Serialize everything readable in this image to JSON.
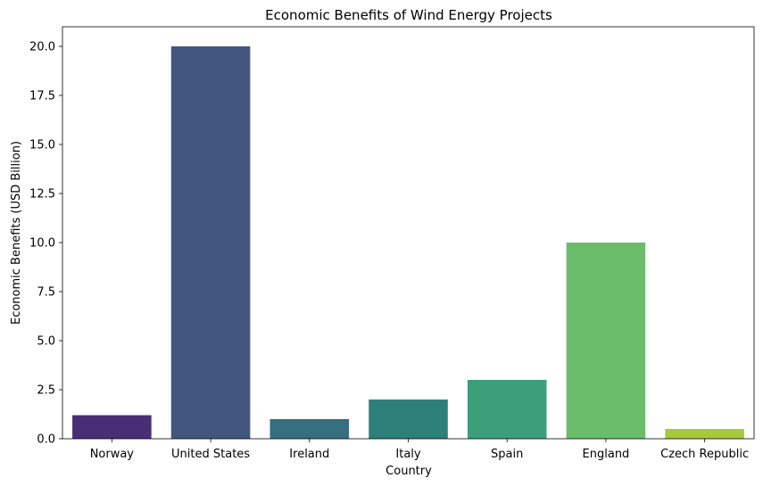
{
  "chart_data": {
    "type": "bar",
    "title": "Economic Benefits of Wind Energy Projects",
    "xlabel": "Country",
    "ylabel": "Economic Benefits (USD Billion)",
    "categories": [
      "Norway",
      "United States",
      "Ireland",
      "Italy",
      "Spain",
      "England",
      "Czech Republic"
    ],
    "values": [
      1.2,
      20.0,
      1.0,
      2.0,
      3.0,
      10.0,
      0.5
    ],
    "colors": [
      "#482f75",
      "#43567f",
      "#366f80",
      "#2d8079",
      "#3ba07a",
      "#6bbd6c",
      "#a6c93e"
    ],
    "ylim": [
      0,
      21
    ],
    "yticks": [
      0.0,
      2.5,
      5.0,
      7.5,
      10.0,
      12.5,
      15.0,
      17.5,
      20.0
    ],
    "ytick_labels": [
      "0.0",
      "2.5",
      "5.0",
      "7.5",
      "10.0",
      "12.5",
      "15.0",
      "17.5",
      "20.0"
    ],
    "grid": false,
    "legend": "none"
  }
}
